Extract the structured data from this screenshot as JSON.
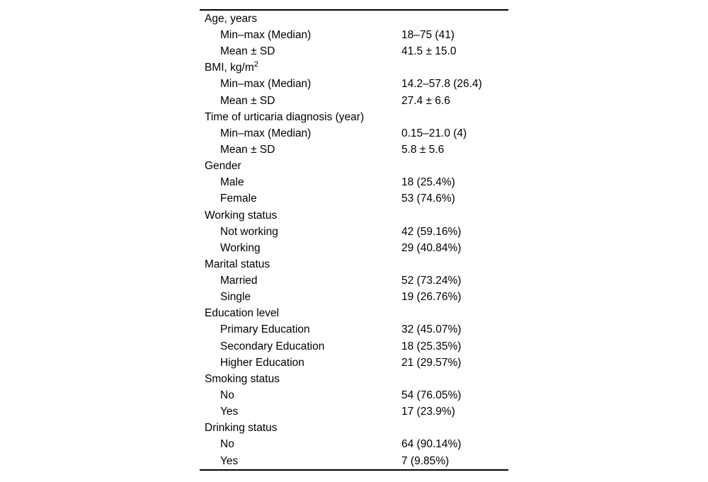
{
  "page": {
    "background": "#ffffff",
    "text_color": "#000000",
    "rule_color": "#000000"
  },
  "table": {
    "sections": [
      {
        "header": "Age, years",
        "rows": [
          {
            "label": "Min–max (Median)",
            "value": "18–75 (41)"
          },
          {
            "label": "Mean ± SD",
            "value": "41.5 ± 15.0"
          }
        ]
      },
      {
        "header": "BMI, kg/m",
        "header_sup": "2",
        "rows": [
          {
            "label": "Min–max (Median)",
            "value": "14.2–57.8 (26.4)"
          },
          {
            "label": "Mean ± SD",
            "value": "27.4 ± 6.6"
          }
        ]
      },
      {
        "header": "Time of urticaria diagnosis (year)",
        "rows": [
          {
            "label": "Min–max (Median)",
            "value": "0.15–21.0 (4)"
          },
          {
            "label": "Mean ± SD",
            "value": "5.8 ± 5.6"
          }
        ]
      },
      {
        "header": "Gender",
        "rows": [
          {
            "label": "Male",
            "value": "18 (25.4%)"
          },
          {
            "label": "Female",
            "value": "53 (74.6%)"
          }
        ]
      },
      {
        "header": "Working status",
        "rows": [
          {
            "label": "Not working",
            "value": "42 (59.16%)"
          },
          {
            "label": "Working",
            "value": "29 (40.84%)"
          }
        ]
      },
      {
        "header": "Marital status",
        "rows": [
          {
            "label": "Married",
            "value": "52 (73.24%)"
          },
          {
            "label": "Single",
            "value": "19 (26.76%)"
          }
        ]
      },
      {
        "header": "Education level",
        "rows": [
          {
            "label": "Primary Education",
            "value": "32 (45.07%)"
          },
          {
            "label": "Secondary Education",
            "value": "18 (25.35%)"
          },
          {
            "label": "Higher Education",
            "value": "21 (29.57%)"
          }
        ]
      },
      {
        "header": "Smoking status",
        "rows": [
          {
            "label": "No",
            "value": "54 (76.05%)"
          },
          {
            "label": "Yes",
            "value": "17 (23.9%)"
          }
        ]
      },
      {
        "header": "Drinking status",
        "rows": [
          {
            "label": "No",
            "value": "64 (90.14%)"
          },
          {
            "label": "Yes",
            "value": "7 (9.85%)"
          }
        ]
      }
    ]
  }
}
